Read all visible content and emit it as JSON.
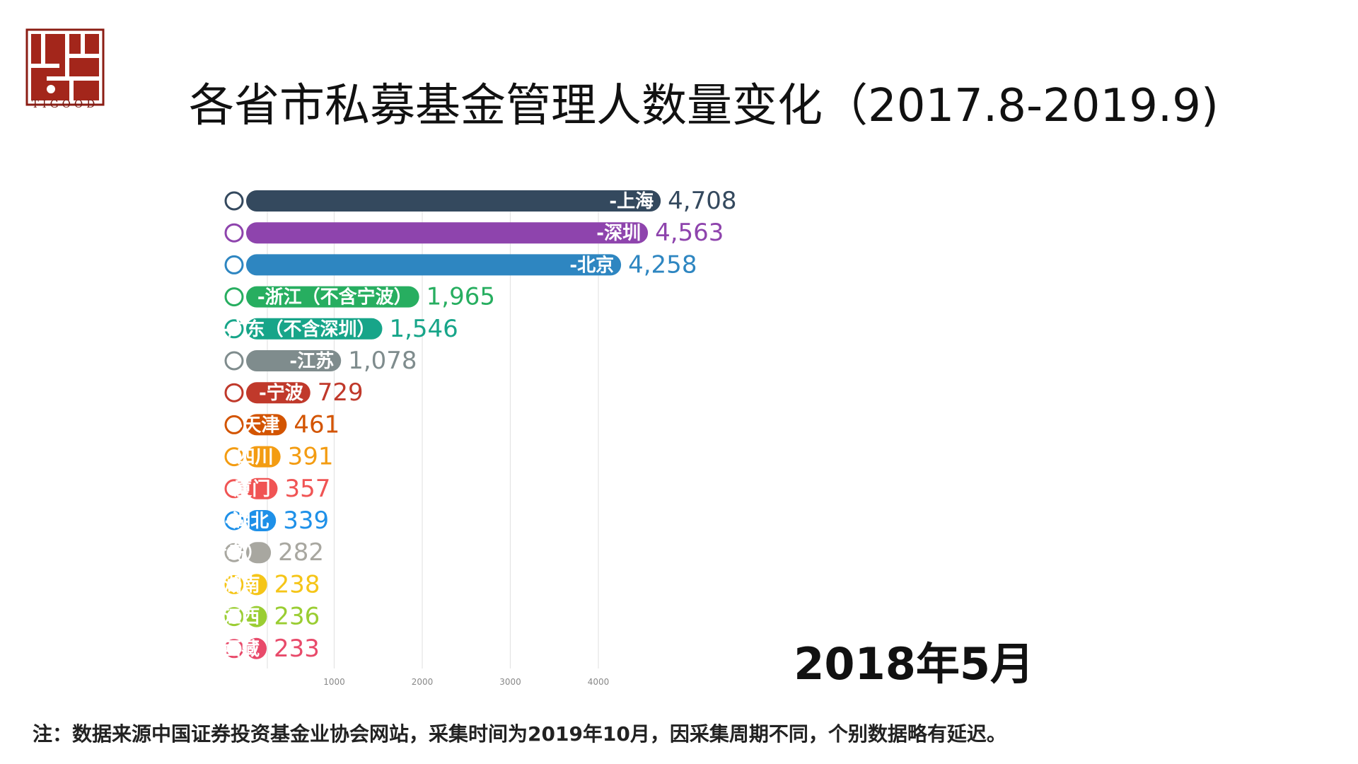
{
  "logo": {
    "text": "TIGOOD",
    "color": "#8b1d14"
  },
  "title": "各省市私募基金管理人数量变化（2017.8-2019.9)",
  "date": "2018年5月",
  "footnote": "注：数据来源中国证券投资基金业协会网站，采集时间为2019年10月，因采集周期不同，个别数据略有延迟。",
  "chart_data": {
    "type": "bar",
    "orientation": "horizontal",
    "title": "各省市私募基金管理人数量变化（2017.8-2019.9)",
    "xlim": [
      0,
      4800
    ],
    "xticks": [
      1000,
      2000,
      3000,
      4000
    ],
    "grid": true,
    "categories": [
      "-上海",
      "-深圳",
      "-北京",
      "-浙江（不含宁波）",
      "-广东（不含深圳）",
      "-江苏",
      "-宁波",
      "-天津",
      "-四川",
      "-厦门",
      "-湖北",
      "-山东（不含青岛）",
      "-湖南",
      "-江西",
      "-西藏"
    ],
    "values": [
      4708,
      4563,
      4258,
      1965,
      1546,
      1078,
      729,
      461,
      391,
      357,
      339,
      282,
      238,
      236,
      233
    ],
    "value_labels": [
      "4,708",
      "4,563",
      "4,258",
      "1,965",
      "1,546",
      "1,078",
      "729",
      "461",
      "391",
      "357",
      "339",
      "282",
      "238",
      "236",
      "233"
    ],
    "colors": [
      "#34495e",
      "#8e44ad",
      "#2e86c1",
      "#27ae60",
      "#17a589",
      "#7f8c8d",
      "#c0392b",
      "#d35400",
      "#f39c12",
      "#f05454",
      "#1e90e8",
      "#a8a7a0",
      "#f5c518",
      "#9acd32",
      "#e84a6a"
    ]
  }
}
